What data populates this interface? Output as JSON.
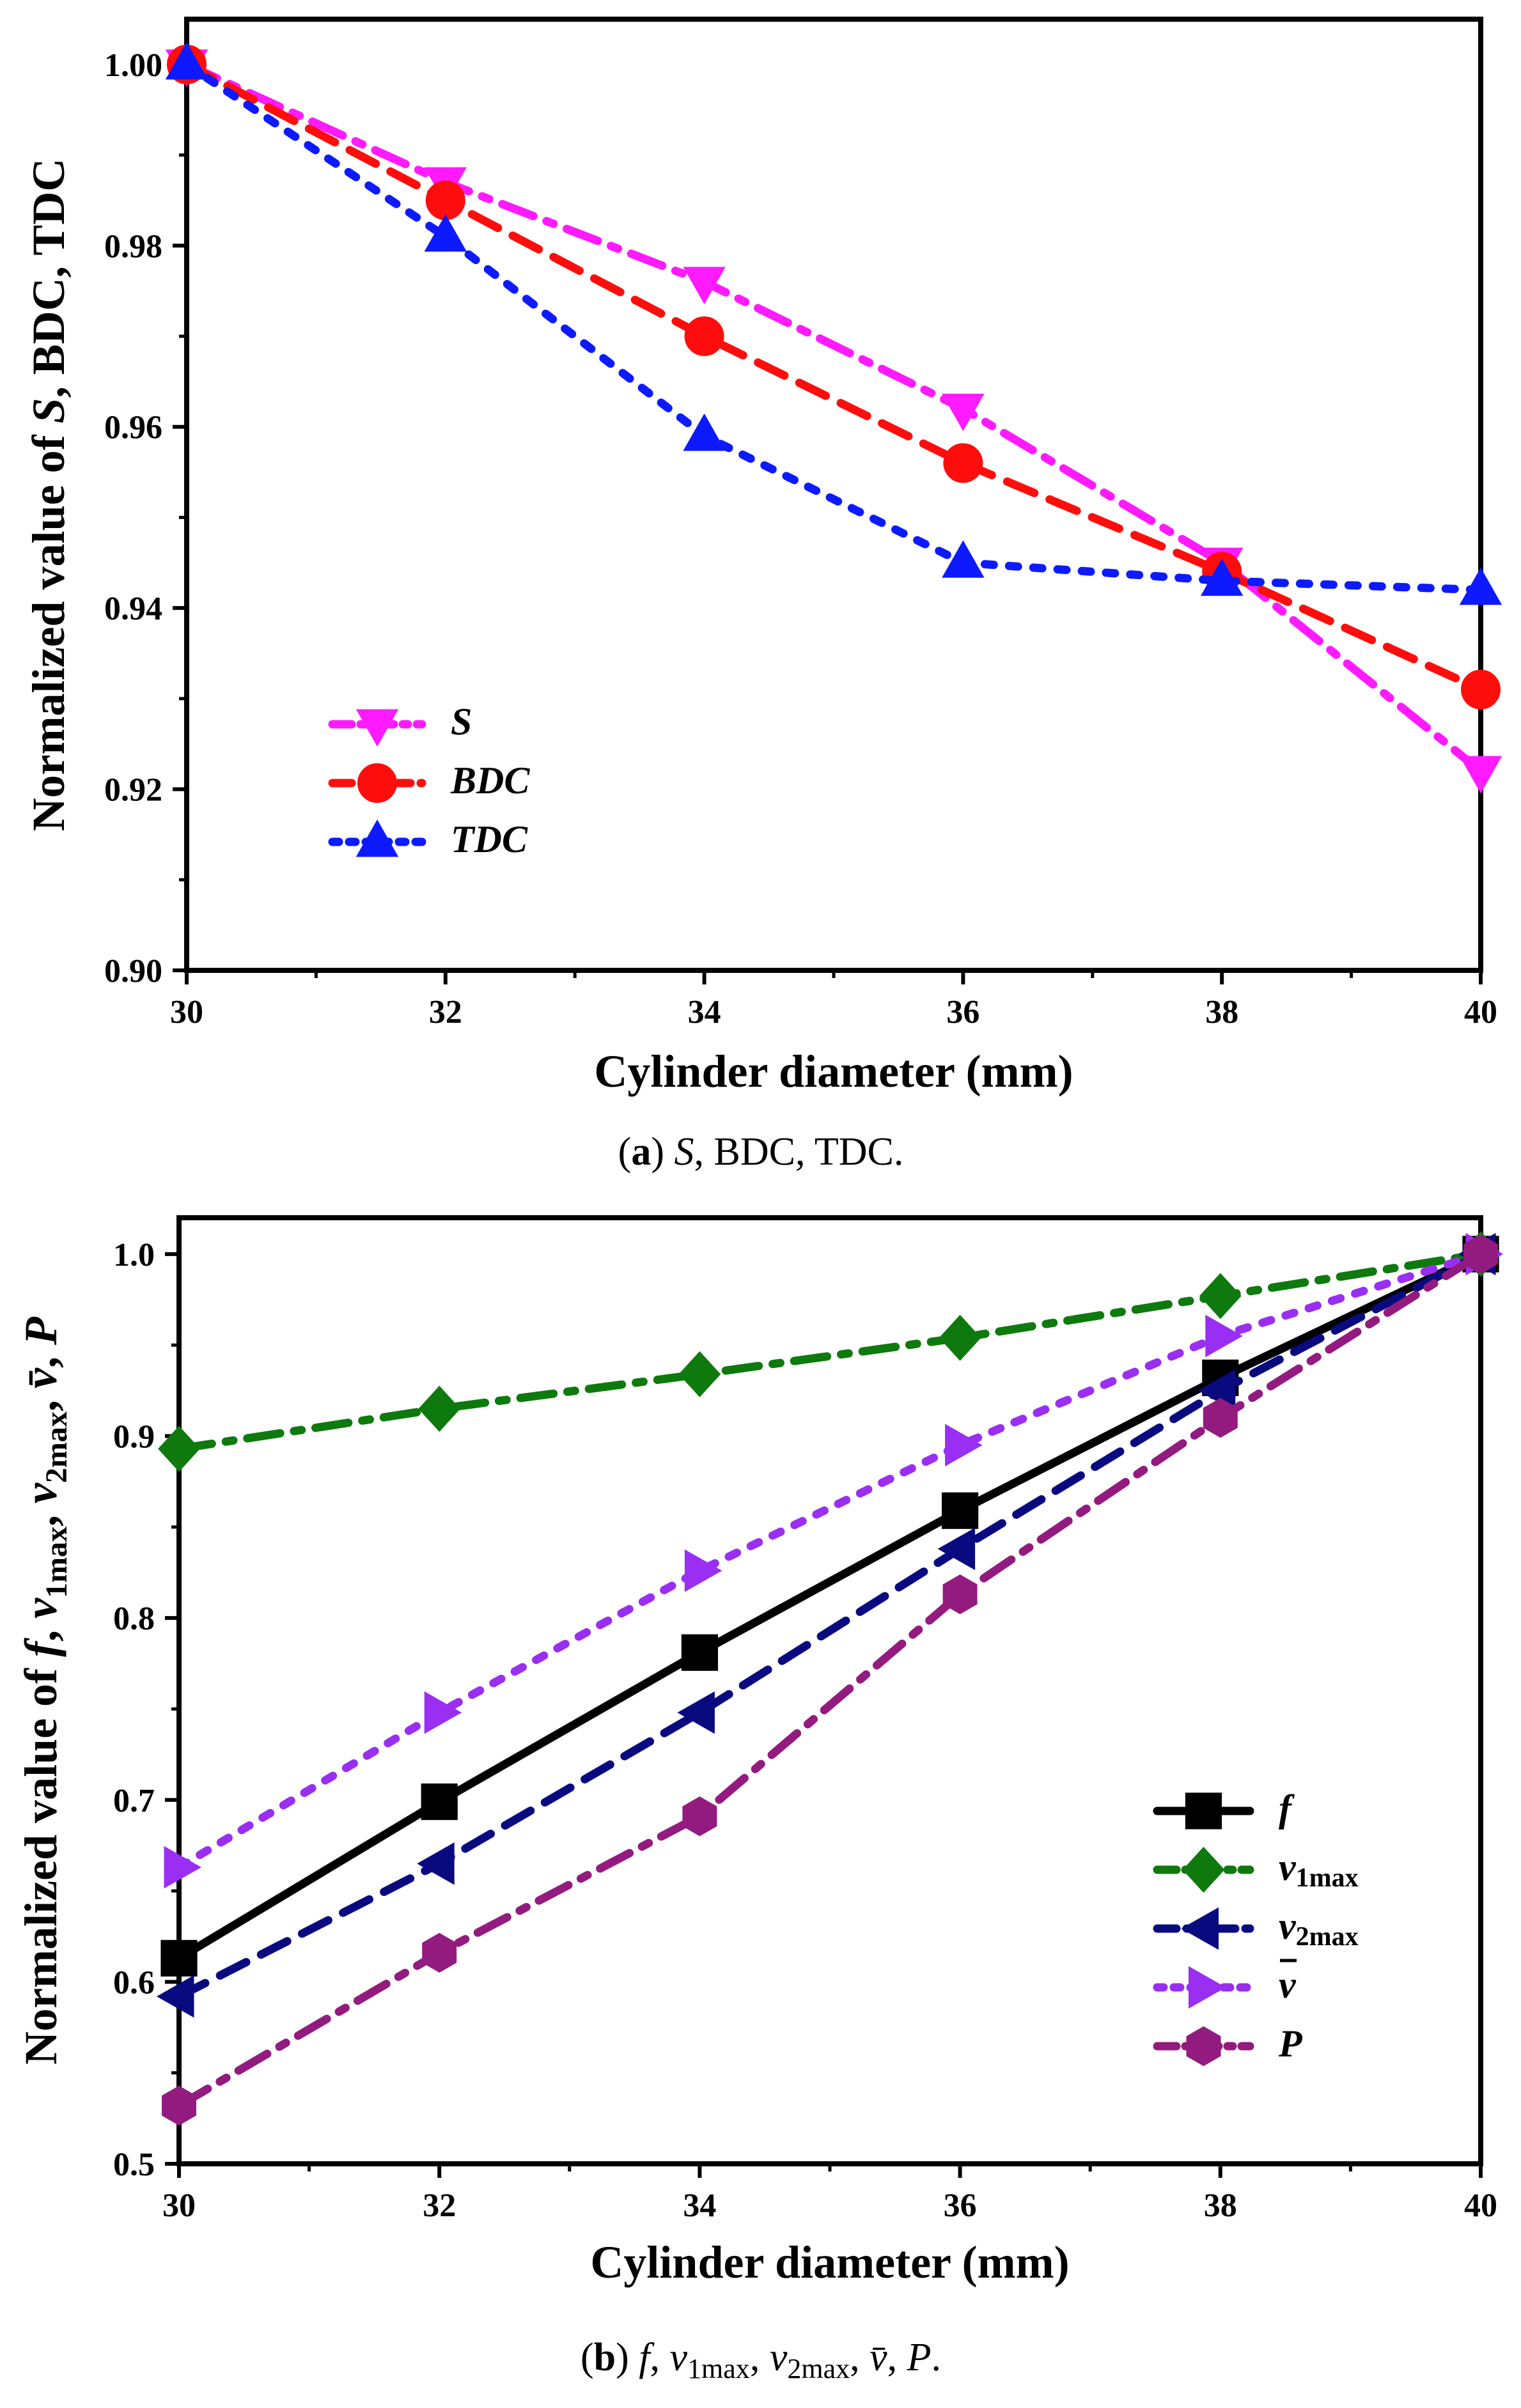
{
  "chart_data": [
    {
      "type": "line",
      "panel": "a",
      "caption": {
        "letter": "a",
        "text": "S, BDC, TDC."
      },
      "xlabel": "Cylinder diameter (mm)",
      "ylabel": "Normalized value of S, BDC, TDC",
      "xlim": [
        30,
        40
      ],
      "ylim": [
        0.9,
        1.005
      ],
      "xticks": [
        30,
        32,
        34,
        36,
        38,
        40
      ],
      "yticks": [
        0.9,
        0.92,
        0.94,
        0.96,
        0.98,
        1.0
      ],
      "legend_position": "lower-left",
      "x": [
        30,
        32,
        34,
        36,
        38,
        40
      ],
      "series": [
        {
          "name": "S",
          "color": "#ff1aff",
          "marker": "triangle-down",
          "dash": "dash-dot",
          "values": [
            1.0,
            0.987,
            0.976,
            0.962,
            0.945,
            0.922
          ]
        },
        {
          "name": "BDC",
          "color": "#ff0d0d",
          "marker": "circle",
          "dash": "dash",
          "values": [
            1.0,
            0.985,
            0.97,
            0.956,
            0.944,
            0.931
          ]
        },
        {
          "name": "TDC",
          "color": "#0d1aff",
          "marker": "triangle-up",
          "dash": "dot",
          "values": [
            1.0,
            0.981,
            0.959,
            0.945,
            0.943,
            0.942
          ]
        }
      ]
    },
    {
      "type": "line",
      "panel": "b",
      "caption": {
        "letter": "b",
        "text": "f, v1max, v2max, v̄, P."
      },
      "xlabel": "Cylinder diameter (mm)",
      "ylabel": "Normalized value of f, v1max, v2max, v̄, P",
      "xlim": [
        30,
        40
      ],
      "ylim": [
        0.5,
        1.02
      ],
      "xticks": [
        30,
        32,
        34,
        36,
        38,
        40
      ],
      "yticks": [
        0.5,
        0.6,
        0.7,
        0.8,
        0.9,
        1.0
      ],
      "legend_position": "lower-right",
      "x": [
        30,
        32,
        34,
        36,
        38,
        40
      ],
      "series": [
        {
          "name": "f",
          "color": "#000000",
          "marker": "square",
          "dash": "solid",
          "values": [
            0.613,
            0.699,
            0.781,
            0.859,
            0.932,
            1.0
          ]
        },
        {
          "name": "v1max",
          "color": "#0e7a0e",
          "marker": "diamond",
          "dash": "dash-dot",
          "values": [
            0.893,
            0.915,
            0.934,
            0.954,
            0.977,
            1.0
          ]
        },
        {
          "name": "v2max",
          "color": "#0a0a80",
          "marker": "triangle-left",
          "dash": "dash",
          "values": [
            0.592,
            0.665,
            0.748,
            0.838,
            0.925,
            1.0
          ]
        },
        {
          "name": "v̄",
          "color": "#9a2ef2",
          "marker": "triangle-right",
          "dash": "dot",
          "values": [
            0.663,
            0.748,
            0.826,
            0.895,
            0.955,
            1.0
          ]
        },
        {
          "name": "P",
          "color": "#931b7f",
          "marker": "hexagon",
          "dash": "dash-dot",
          "values": [
            0.532,
            0.616,
            0.691,
            0.813,
            0.91,
            1.0
          ]
        }
      ]
    }
  ]
}
